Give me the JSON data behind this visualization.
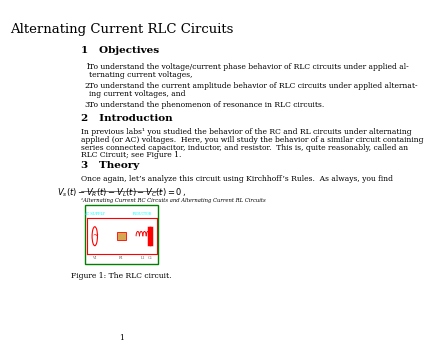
{
  "title": "Alternating Current RLC Circuits",
  "section1_title": "1   Objectives",
  "objectives": [
    "To understand the voltage/current phase behavior of RLC circuits under applied alternating current voltages,",
    "To understand the current amplitude behavior of RLC circuits under applied alternating current voltages, and",
    "To understand the phenomenon of resonance in RLC circuits."
  ],
  "section2_title": "2   Introduction",
  "section3_title": "3   Theory",
  "equation": "$V_s(t) - V_R(t) - V_L(t) - V_C(t) = 0\\,,$",
  "footnote": "¹Alternating Current RC Circuits and Alternating Current RL Circuits",
  "figure_caption": "Figure 1: The RLC circuit.",
  "page_number": "1",
  "bg_color": "#ffffff",
  "text_color": "#000000",
  "body_font_size": 5.5,
  "title_font_size": 9.5,
  "section_font_size": 7.5
}
